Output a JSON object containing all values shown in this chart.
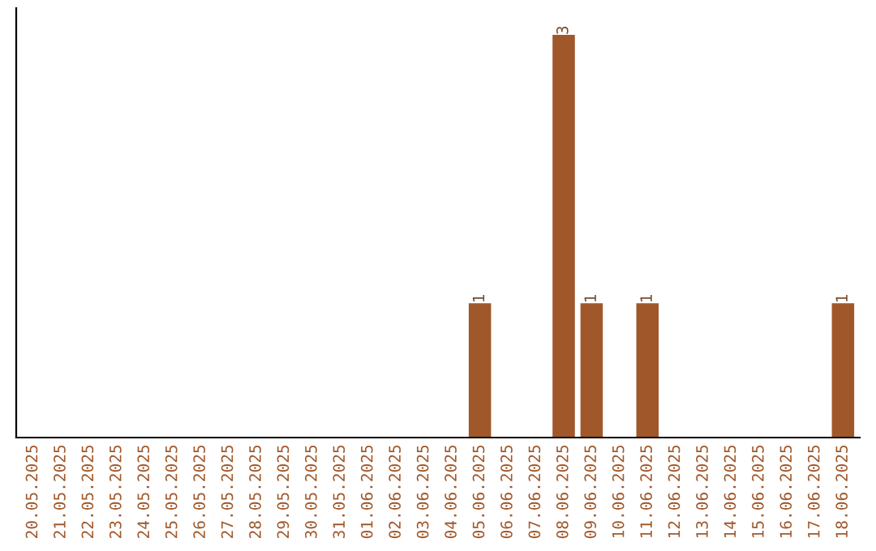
{
  "chart_data": {
    "type": "bar",
    "categories": [
      "20.05.2025",
      "21.05.2025",
      "22.05.2025",
      "23.05.2025",
      "24.05.2025",
      "25.05.2025",
      "26.05.2025",
      "27.05.2025",
      "28.05.2025",
      "29.05.2025",
      "30.05.2025",
      "31.05.2025",
      "01.06.2025",
      "02.06.2025",
      "03.06.2025",
      "04.06.2025",
      "05.06.2025",
      "06.06.2025",
      "07.06.2025",
      "08.06.2025",
      "09.06.2025",
      "10.06.2025",
      "11.06.2025",
      "12.06.2025",
      "13.06.2025",
      "14.06.2025",
      "15.06.2025",
      "16.06.2025",
      "17.06.2025",
      "18.06.2025"
    ],
    "values": [
      null,
      null,
      null,
      null,
      null,
      null,
      null,
      null,
      null,
      null,
      null,
      null,
      null,
      null,
      null,
      null,
      1,
      null,
      null,
      3,
      1,
      null,
      1,
      null,
      null,
      null,
      null,
      null,
      null,
      1
    ],
    "ylim": [
      0,
      3.2
    ],
    "tick_labels": "x",
    "value_labels": [
      null,
      null,
      null,
      null,
      null,
      null,
      null,
      null,
      null,
      null,
      null,
      null,
      null,
      null,
      null,
      null,
      "1",
      null,
      null,
      "3",
      "1",
      null,
      "1",
      null,
      null,
      null,
      null,
      null,
      null,
      "1"
    ],
    "color": "#a0582a",
    "grid": false,
    "legend": false
  }
}
